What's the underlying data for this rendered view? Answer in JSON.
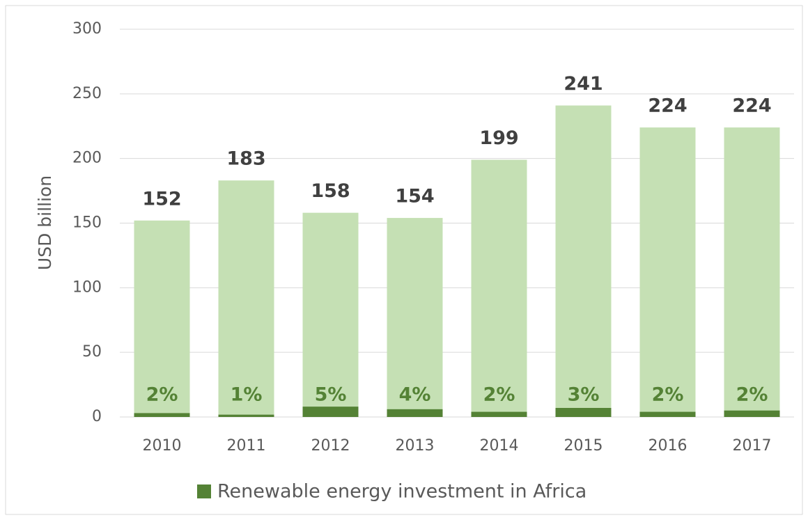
{
  "chart_data": {
    "type": "bar",
    "y_label": "USD billion",
    "categories": [
      "2010",
      "2011",
      "2012",
      "2013",
      "2014",
      "2015",
      "2016",
      "2017"
    ],
    "series": [
      {
        "color": "#c5e0b4",
        "values": [
          152,
          183,
          158,
          154,
          199,
          241,
          224,
          224
        ]
      },
      {
        "name": "Renewable energy investment in Africa",
        "color": "#548235",
        "values": [
          3,
          1.8,
          8,
          6,
          4,
          7,
          4,
          5
        ],
        "share_labels": [
          "2%",
          "1%",
          "5%",
          "4%",
          "2%",
          "3%",
          "2%",
          "2%"
        ]
      }
    ],
    "ylim": [
      0,
      300
    ],
    "yticks": [
      0,
      50,
      100,
      150,
      200,
      250,
      300
    ],
    "grid": true,
    "legend": "bottom"
  }
}
